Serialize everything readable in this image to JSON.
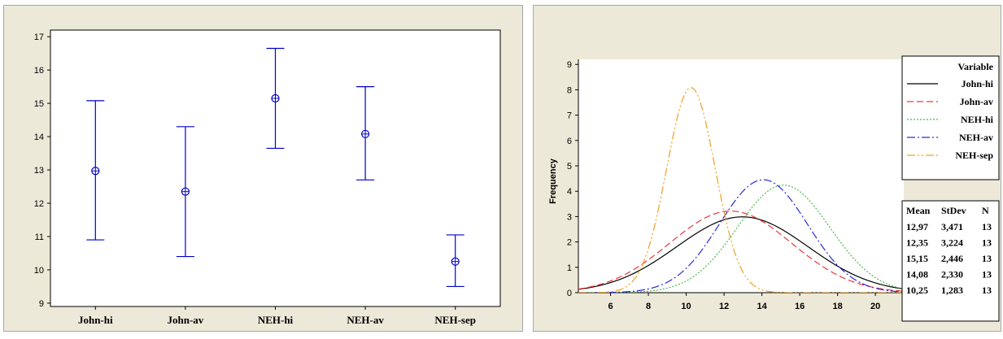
{
  "chart_data": [
    {
      "type": "interval",
      "categories": [
        "John-hi",
        "John-av",
        "NEH-hi",
        "NEH-av",
        "NEH-sep"
      ],
      "means": [
        12.97,
        12.35,
        15.15,
        14.08,
        10.25
      ],
      "lower": [
        10.9,
        10.4,
        13.65,
        12.7,
        9.5
      ],
      "upper": [
        15.08,
        14.3,
        16.65,
        15.5,
        11.05
      ],
      "yticks": [
        "9",
        "10",
        "11",
        "12",
        "13",
        "14",
        "15",
        "16",
        "17"
      ],
      "ylim": [
        8.9,
        17.2
      ],
      "color": "#0000cc"
    },
    {
      "type": "line",
      "ylabel": "Frequency",
      "xticks": [
        "6",
        "8",
        "10",
        "12",
        "14",
        "16",
        "18",
        "20"
      ],
      "yticks": [
        "0",
        "1",
        "2",
        "3",
        "4",
        "5",
        "6",
        "7",
        "8",
        "9"
      ],
      "xlim": [
        4.3,
        21.5
      ],
      "ylim": [
        0,
        9.2
      ],
      "legend_title": "Variable",
      "stats_headers": [
        "Mean",
        "StDev",
        "N"
      ],
      "series": [
        {
          "name": "John-hi",
          "mean": "12,97",
          "stdev": "3,471",
          "n": "13",
          "mu": 12.97,
          "sigma": 3.471,
          "color": "#000000",
          "dash": ""
        },
        {
          "name": "John-av",
          "mean": "12,35",
          "stdev": "3,224",
          "n": "13",
          "mu": 12.35,
          "sigma": 3.224,
          "color": "#e8393a",
          "dash": "8,4"
        },
        {
          "name": "NEH-hi",
          "mean": "15,15",
          "stdev": "2,446",
          "n": "13",
          "mu": 15.15,
          "sigma": 2.446,
          "color": "#4fb84f",
          "dash": "2,2"
        },
        {
          "name": "NEH-av",
          "mean": "14,08",
          "stdev": "2,330",
          "n": "13",
          "mu": 14.08,
          "sigma": 2.33,
          "color": "#2a2ae0",
          "dash": "10,3,2,3"
        },
        {
          "name": "NEH-sep",
          "mean": "10,25",
          "stdev": "1,283",
          "n": "13",
          "mu": 10.25,
          "sigma": 1.283,
          "color": "#f0a020",
          "dash": "10,3,2,3,2,3"
        }
      ]
    }
  ]
}
